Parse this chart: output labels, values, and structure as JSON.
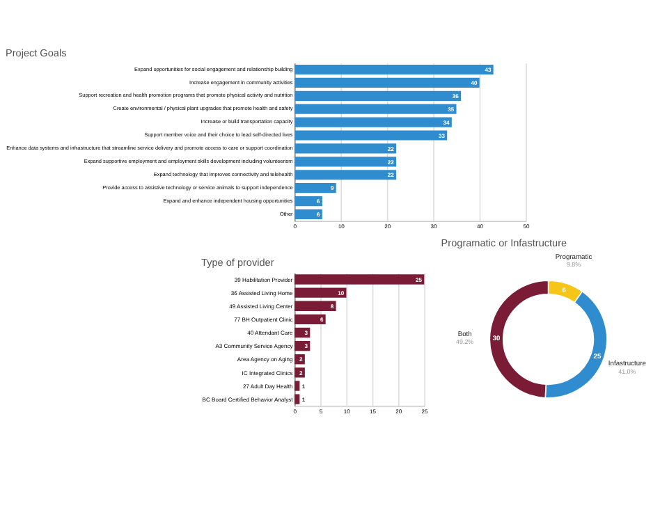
{
  "chart_data": [
    {
      "type": "bar",
      "orientation": "horizontal",
      "title": "Project Goals",
      "categories": [
        "Expand opportunities for social engagement and relationship building",
        "Increase engagement in community activities",
        "Support recreation and health promotion programs that promote physical activity and nutrition",
        "Create environmental / physical plant upgrades that promote health and safety",
        "Increase or build transportation capacity",
        "Support member voice and their choice to lead self-directed lives",
        "Enhance data systems and infrastructure that streamline service delivery and promote access to care or support coordination",
        "Expand supportive employment and employment skills development including volunteerism",
        "Expand technology that improves connectivity and telehealth",
        "Provide access to assistive technology or service animals to support independence",
        "Expand and enhance independent housing opportunities",
        "Other"
      ],
      "values": [
        43,
        40,
        36,
        35,
        34,
        33,
        22,
        22,
        22,
        9,
        6,
        6
      ],
      "color": "#2e8ccf",
      "xlim": [
        0,
        50
      ],
      "xticks": [
        0,
        10,
        20,
        30,
        40,
        50
      ],
      "grid": "x",
      "data_labels": true
    },
    {
      "type": "bar",
      "orientation": "horizontal",
      "title": "Type of provider",
      "categories": [
        "39 Habilitation Provider",
        "36 Assisted Living Home",
        "49 Assisted Living Center",
        "77 BH Outpatient Clinic",
        "40 Attendant Care",
        "A3 Community Service Agency",
        "Area Agency on Aging",
        "IC Integrated Clinics",
        "27 Adult Day Health",
        "BC Board Certified Behavior Analyst"
      ],
      "values": [
        25,
        10,
        8,
        6,
        3,
        3,
        2,
        2,
        1,
        1
      ],
      "color": "#7a1c36",
      "xlim": [
        0,
        25
      ],
      "xticks": [
        0,
        5,
        10,
        15,
        20,
        25
      ],
      "grid": "x",
      "data_labels": true
    },
    {
      "type": "donut",
      "title": "Programatic or Infastructure",
      "categories": [
        "Programatic",
        "Infastructure",
        "Both"
      ],
      "values": [
        6,
        25,
        30
      ],
      "colors": [
        "#f5c518",
        "#2e8ccf",
        "#7a1c36"
      ],
      "data_labels": true,
      "annotations": [
        "9.8%",
        "41.0%",
        "49.2%"
      ]
    }
  ]
}
